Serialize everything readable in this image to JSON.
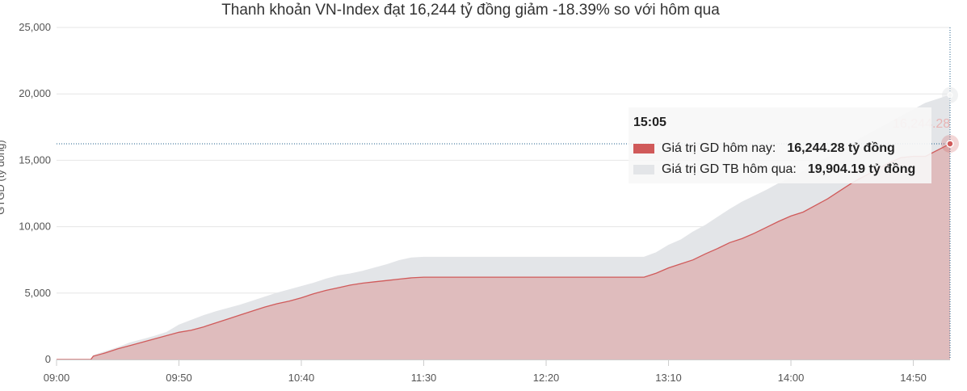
{
  "chart_data": {
    "type": "area",
    "title": "Thanh khoản VN-Index đạt 16,244 tỷ đồng giảm -18.39% so với hôm qua",
    "ylabel": "GTGD (tỷ đồng)",
    "xlabel": "",
    "ylim": [
      0,
      25000
    ],
    "y_ticks": [
      "0",
      "5,000",
      "10,000",
      "15,000",
      "20,000",
      "25,000"
    ],
    "y_tick_values": [
      0,
      5000,
      10000,
      15000,
      20000,
      25000
    ],
    "x_ticks": [
      "09:00",
      "09:50",
      "10:40",
      "11:30",
      "12:20",
      "13:10",
      "14:00",
      "14:50"
    ],
    "grid": true,
    "series": [
      {
        "name": "Giá trị GD TB hôm qua",
        "color": "#e3e5e8",
        "points": [
          [
            "09:00",
            0
          ],
          [
            "09:14",
            0
          ],
          [
            "09:15",
            300
          ],
          [
            "09:20",
            600
          ],
          [
            "09:25",
            900
          ],
          [
            "09:30",
            1250
          ],
          [
            "09:35",
            1500
          ],
          [
            "09:40",
            1750
          ],
          [
            "09:45",
            2050
          ],
          [
            "09:50",
            2600
          ],
          [
            "09:55",
            2950
          ],
          [
            "10:00",
            3300
          ],
          [
            "10:05",
            3600
          ],
          [
            "10:10",
            3850
          ],
          [
            "10:15",
            4100
          ],
          [
            "10:20",
            4400
          ],
          [
            "10:25",
            4700
          ],
          [
            "10:30",
            5000
          ],
          [
            "10:35",
            5250
          ],
          [
            "10:40",
            5500
          ],
          [
            "10:45",
            5750
          ],
          [
            "10:50",
            6050
          ],
          [
            "10:55",
            6300
          ],
          [
            "11:00",
            6450
          ],
          [
            "11:05",
            6650
          ],
          [
            "11:10",
            6900
          ],
          [
            "11:15",
            7150
          ],
          [
            "11:20",
            7450
          ],
          [
            "11:25",
            7650
          ],
          [
            "11:30",
            7700
          ],
          [
            "12:59",
            7700
          ],
          [
            "13:00",
            7700
          ],
          [
            "13:05",
            8050
          ],
          [
            "13:10",
            8600
          ],
          [
            "13:15",
            9000
          ],
          [
            "13:20",
            9600
          ],
          [
            "13:25",
            10100
          ],
          [
            "13:30",
            10700
          ],
          [
            "13:35",
            11300
          ],
          [
            "13:40",
            11850
          ],
          [
            "13:45",
            12300
          ],
          [
            "13:50",
            12750
          ],
          [
            "13:55",
            13250
          ],
          [
            "14:00",
            13700
          ],
          [
            "14:05",
            14150
          ],
          [
            "14:10",
            14700
          ],
          [
            "14:15",
            15200
          ],
          [
            "14:20",
            15700
          ],
          [
            "14:25",
            16300
          ],
          [
            "14:30",
            16800
          ],
          [
            "14:35",
            17300
          ],
          [
            "14:40",
            17800
          ],
          [
            "14:45",
            18300
          ],
          [
            "14:50",
            18800
          ],
          [
            "14:55",
            19300
          ],
          [
            "15:05",
            19904.19
          ]
        ]
      },
      {
        "name": "Giá trị GD hôm nay",
        "color": "#d05a5a",
        "points": [
          [
            "09:00",
            0
          ],
          [
            "09:14",
            0
          ],
          [
            "09:15",
            250
          ],
          [
            "09:20",
            500
          ],
          [
            "09:25",
            800
          ],
          [
            "09:30",
            1050
          ],
          [
            "09:35",
            1300
          ],
          [
            "09:40",
            1550
          ],
          [
            "09:45",
            1800
          ],
          [
            "09:50",
            2050
          ],
          [
            "09:55",
            2200
          ],
          [
            "10:00",
            2450
          ],
          [
            "10:05",
            2750
          ],
          [
            "10:10",
            3050
          ],
          [
            "10:15",
            3350
          ],
          [
            "10:20",
            3650
          ],
          [
            "10:25",
            3950
          ],
          [
            "10:30",
            4200
          ],
          [
            "10:35",
            4400
          ],
          [
            "10:40",
            4650
          ],
          [
            "10:45",
            4950
          ],
          [
            "10:50",
            5200
          ],
          [
            "10:55",
            5400
          ],
          [
            "11:00",
            5600
          ],
          [
            "11:05",
            5750
          ],
          [
            "11:10",
            5850
          ],
          [
            "11:15",
            5950
          ],
          [
            "11:20",
            6050
          ],
          [
            "11:25",
            6150
          ],
          [
            "11:30",
            6200
          ],
          [
            "12:59",
            6200
          ],
          [
            "13:00",
            6200
          ],
          [
            "13:05",
            6500
          ],
          [
            "13:10",
            6900
          ],
          [
            "13:15",
            7200
          ],
          [
            "13:20",
            7500
          ],
          [
            "13:25",
            7950
          ],
          [
            "13:30",
            8350
          ],
          [
            "13:35",
            8800
          ],
          [
            "13:40",
            9100
          ],
          [
            "13:45",
            9500
          ],
          [
            "13:50",
            9950
          ],
          [
            "13:55",
            10400
          ],
          [
            "14:00",
            10800
          ],
          [
            "14:05",
            11100
          ],
          [
            "14:10",
            11600
          ],
          [
            "14:15",
            12100
          ],
          [
            "14:20",
            12700
          ],
          [
            "14:25",
            13300
          ],
          [
            "14:30",
            13800
          ],
          [
            "14:35",
            14300
          ],
          [
            "14:40",
            14800
          ],
          [
            "14:45",
            15200
          ],
          [
            "14:50",
            15300
          ],
          [
            "14:55",
            15300
          ],
          [
            "15:05",
            16244.28
          ]
        ]
      }
    ],
    "crosshair": {
      "time": "15:05",
      "value": 16244.28,
      "label": "16,244.28"
    },
    "tooltip": {
      "time": "15:05",
      "rows": [
        {
          "label": "Giá trị GD hôm nay:",
          "value": "16,244.28 tỷ đồng",
          "color": "#d05a5a"
        },
        {
          "label": "Giá trị GD TB hôm qua:",
          "value": "19,904.19 tỷ đồng",
          "color": "#e3e5e8"
        }
      ]
    }
  }
}
